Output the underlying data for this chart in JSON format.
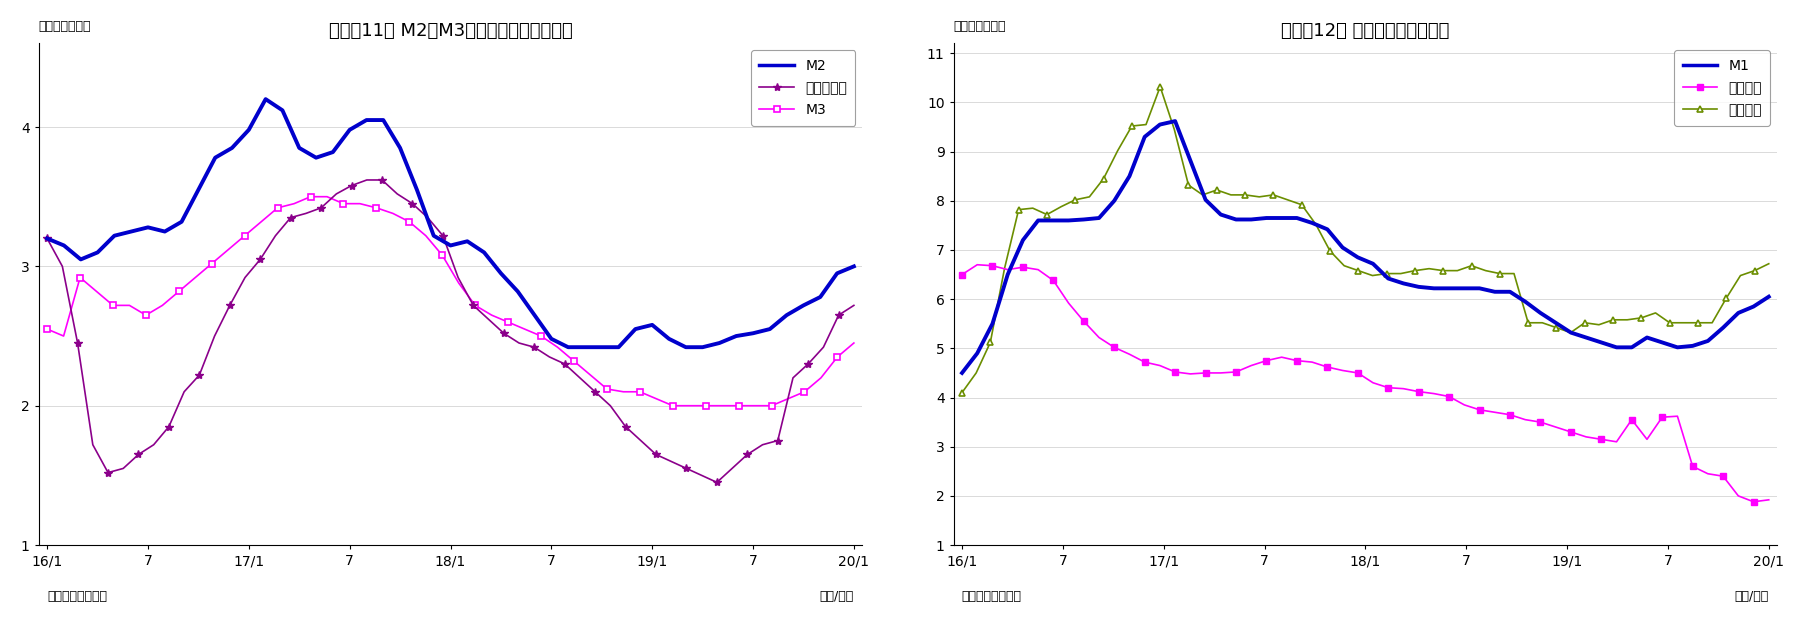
{
  "chart1": {
    "title": "(図表11） M2、M3、広義流動性の伸び率",
    "title_display": "（図表11） M2、M3、広義流動性の伸び率",
    "ylabel": "（前年比、％）",
    "xlabel": "（年/月）",
    "source": "（資料）日本銀行",
    "ylim": [
      1.0,
      4.6
    ],
    "yticks": [
      1,
      2,
      3,
      4
    ],
    "xtick_labels": [
      "16/1",
      "7",
      "17/1",
      "7",
      "18/1",
      "7",
      "19/1",
      "7",
      "20/1"
    ],
    "M2": [
      3.2,
      3.15,
      3.05,
      3.1,
      3.22,
      3.25,
      3.28,
      3.25,
      3.32,
      3.55,
      3.78,
      3.85,
      3.98,
      4.2,
      4.12,
      3.85,
      3.78,
      3.82,
      3.98,
      4.05,
      4.05,
      3.85,
      3.55,
      3.22,
      3.15,
      3.18,
      3.1,
      2.95,
      2.82,
      2.65,
      2.48,
      2.42,
      2.42,
      2.42,
      2.42,
      2.55,
      2.58,
      2.48,
      2.42,
      2.42,
      2.45,
      2.5,
      2.52,
      2.55,
      2.65,
      2.72,
      2.78,
      2.95,
      3.0
    ],
    "kougi": [
      3.2,
      3.0,
      2.45,
      1.72,
      1.52,
      1.55,
      1.65,
      1.72,
      1.85,
      2.1,
      2.22,
      2.5,
      2.72,
      2.92,
      3.05,
      3.22,
      3.35,
      3.38,
      3.42,
      3.52,
      3.58,
      3.62,
      3.62,
      3.52,
      3.45,
      3.35,
      3.22,
      2.92,
      2.72,
      2.62,
      2.52,
      2.45,
      2.42,
      2.35,
      2.3,
      2.2,
      2.1,
      2.0,
      1.85,
      1.75,
      1.65,
      1.6,
      1.55,
      1.5,
      1.45,
      1.55,
      1.65,
      1.72,
      1.75,
      2.2,
      2.3,
      2.42,
      2.65,
      2.72
    ],
    "M3": [
      2.55,
      2.5,
      2.92,
      2.82,
      2.72,
      2.72,
      2.65,
      2.72,
      2.82,
      2.92,
      3.02,
      3.12,
      3.22,
      3.32,
      3.42,
      3.45,
      3.5,
      3.5,
      3.45,
      3.45,
      3.42,
      3.38,
      3.32,
      3.22,
      3.08,
      2.88,
      2.72,
      2.65,
      2.6,
      2.55,
      2.5,
      2.42,
      2.32,
      2.22,
      2.12,
      2.1,
      2.1,
      2.05,
      2.0,
      2.0,
      2.0,
      2.0,
      2.0,
      2.0,
      2.0,
      2.05,
      2.1,
      2.2,
      2.35,
      2.45
    ],
    "legend_M2": "M2",
    "legend_kougi": "広義流動性",
    "legend_M3": "M3"
  },
  "chart2": {
    "title": "（図表12） 現金・預金の伸び率",
    "ylabel": "（前年比、％）",
    "xlabel": "（年/月）",
    "source": "（資料）日本銀行",
    "ylim": [
      1.0,
      11.2
    ],
    "yticks": [
      1,
      2,
      3,
      4,
      5,
      6,
      7,
      8,
      9,
      10,
      11
    ],
    "xtick_labels": [
      "16/1",
      "7",
      "17/1",
      "7",
      "18/1",
      "7",
      "19/1",
      "7",
      "20/1"
    ],
    "M1": [
      4.5,
      4.9,
      5.5,
      6.5,
      7.2,
      7.6,
      7.6,
      7.6,
      7.62,
      7.65,
      8.0,
      8.5,
      9.3,
      9.55,
      9.62,
      8.82,
      8.02,
      7.72,
      7.62,
      7.62,
      7.65,
      7.65,
      7.65,
      7.55,
      7.42,
      7.05,
      6.85,
      6.72,
      6.42,
      6.32,
      6.25,
      6.22,
      6.22,
      6.22,
      6.22,
      6.15,
      6.15,
      5.95,
      5.72,
      5.52,
      5.32,
      5.22,
      5.12,
      5.02,
      5.02,
      5.22,
      5.12,
      5.02,
      5.05,
      5.15,
      5.42,
      5.72,
      5.85,
      6.05
    ],
    "genkin": [
      6.5,
      6.7,
      6.68,
      6.6,
      6.65,
      6.6,
      6.38,
      5.92,
      5.55,
      5.22,
      5.02,
      4.88,
      4.72,
      4.65,
      4.52,
      4.48,
      4.5,
      4.5,
      4.52,
      4.65,
      4.75,
      4.82,
      4.75,
      4.72,
      4.62,
      4.55,
      4.5,
      4.3,
      4.2,
      4.18,
      4.12,
      4.08,
      4.02,
      3.85,
      3.75,
      3.7,
      3.65,
      3.55,
      3.5,
      3.4,
      3.3,
      3.2,
      3.15,
      3.1,
      3.55,
      3.15,
      3.6,
      3.62,
      2.6,
      2.45,
      2.4,
      2.0,
      1.88,
      1.92
    ],
    "yokin": [
      4.1,
      4.5,
      5.12,
      6.62,
      7.82,
      7.85,
      7.72,
      7.88,
      8.02,
      8.08,
      8.45,
      9.02,
      9.52,
      9.55,
      10.32,
      9.45,
      8.32,
      8.12,
      8.22,
      8.12,
      8.12,
      8.08,
      8.12,
      8.02,
      7.92,
      7.52,
      6.98,
      6.68,
      6.58,
      6.48,
      6.52,
      6.52,
      6.58,
      6.62,
      6.58,
      6.58,
      6.68,
      6.58,
      6.52,
      6.52,
      5.52,
      5.52,
      5.42,
      5.32,
      5.52,
      5.48,
      5.58,
      5.58,
      5.62,
      5.72,
      5.52,
      5.52,
      5.52,
      5.52,
      6.02,
      6.48,
      6.58,
      6.72
    ],
    "legend_M1": "M1",
    "legend_genkin": "現金通貨",
    "legend_yokin": "預金通貨"
  },
  "colors": {
    "M2": "#0000CC",
    "kougi": "#8B008B",
    "M3": "#FF00FF",
    "M1": "#0000CC",
    "genkin": "#FF00FF",
    "yokin": "#6B8E00"
  },
  "bg_color": "#ffffff"
}
